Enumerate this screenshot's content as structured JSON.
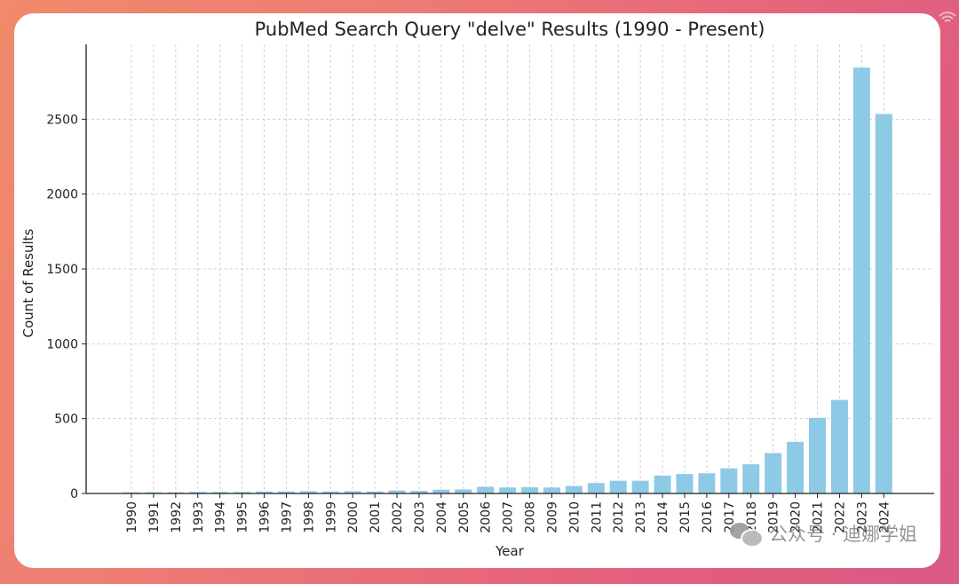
{
  "colors": {
    "bar": "#8ecae6",
    "axis": "#222222",
    "grid": "#d0d0d0",
    "card": "#ffffff"
  },
  "watermark": {
    "text": "公众号 · 迪娜学姐",
    "icon": "wechat-icon"
  },
  "chart_data": {
    "type": "bar",
    "title": "PubMed Search Query \"delve\" Results (1990 - Present)",
    "xlabel": "Year",
    "ylabel": "Count of Results",
    "ylim": [
      0,
      3000
    ],
    "yticks": [
      0,
      500,
      1000,
      1500,
      2000,
      2500
    ],
    "grid": true,
    "categories": [
      "1990",
      "1991",
      "1992",
      "1993",
      "1994",
      "1995",
      "1996",
      "1997",
      "1998",
      "1999",
      "2000",
      "2001",
      "2002",
      "2003",
      "2004",
      "2005",
      "2006",
      "2007",
      "2008",
      "2009",
      "2010",
      "2011",
      "2012",
      "2013",
      "2014",
      "2015",
      "2016",
      "2017",
      "2018",
      "2019",
      "2020",
      "2021",
      "2022",
      "2023",
      "2024"
    ],
    "values": [
      8,
      8,
      8,
      10,
      10,
      10,
      13,
      13,
      15,
      13,
      15,
      13,
      20,
      17,
      25,
      27,
      45,
      40,
      42,
      40,
      50,
      70,
      85,
      85,
      120,
      130,
      135,
      168,
      195,
      270,
      345,
      505,
      625,
      2845,
      2535
    ]
  }
}
